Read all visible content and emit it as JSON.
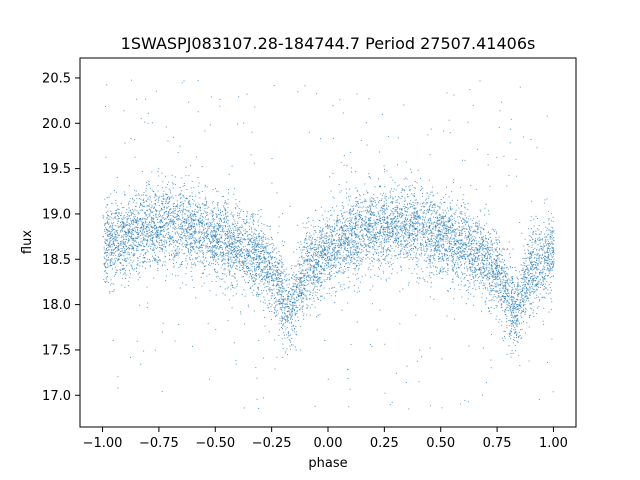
{
  "chart_data": {
    "type": "scatter",
    "title": "1SWASPJ083107.28-184744.7 Period 27507.41406s",
    "xlabel": "phase",
    "ylabel": "flux",
    "xlim": [
      -1.1,
      1.1
    ],
    "ylim": [
      16.65,
      20.72
    ],
    "xticks": [
      -1.0,
      -0.75,
      -0.5,
      -0.25,
      0.0,
      0.25,
      0.5,
      0.75,
      1.0
    ],
    "xtick_labels": [
      "−1.00",
      "−0.75",
      "−0.50",
      "−0.25",
      "0.00",
      "0.25",
      "0.50",
      "0.75",
      "1.00"
    ],
    "yticks": [
      17.0,
      17.5,
      18.0,
      18.5,
      19.0,
      19.5,
      20.0,
      20.5
    ],
    "ytick_labels": [
      "17.0",
      "17.5",
      "18.0",
      "18.5",
      "19.0",
      "19.5",
      "20.0",
      "20.5"
    ],
    "grid": false,
    "marker_color": "#1f77b4",
    "series": [
      {
        "phase": [
          -1.0,
          -0.9,
          -0.8,
          -0.7,
          -0.6,
          -0.5,
          -0.4,
          -0.3,
          -0.25,
          -0.2,
          -0.17,
          -0.15,
          -0.1,
          0.0,
          0.1,
          0.2,
          0.3,
          0.4,
          0.5,
          0.6,
          0.7,
          0.75,
          0.8,
          0.83,
          0.85,
          0.9,
          1.0
        ],
        "mean_flux": [
          18.65,
          18.75,
          18.85,
          18.9,
          18.85,
          18.75,
          18.65,
          18.5,
          18.35,
          18.1,
          17.95,
          18.05,
          18.4,
          18.6,
          18.75,
          18.85,
          18.9,
          18.85,
          18.75,
          18.65,
          18.5,
          18.35,
          18.1,
          17.95,
          18.05,
          18.4,
          18.6
        ]
      }
    ]
  }
}
